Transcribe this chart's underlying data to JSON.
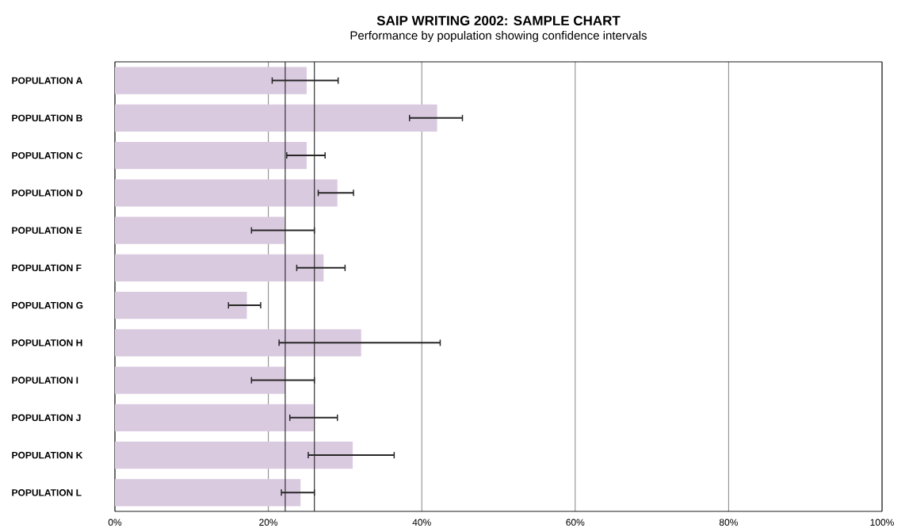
{
  "chart_data": {
    "type": "bar",
    "orientation": "horizontal",
    "title": "SAIP WRITING 2002: SAMPLE CHART",
    "subtitle": "Performance by population showing confidence intervals",
    "categories": [
      "POPULATION A",
      "POPULATION B",
      "POPULATION C",
      "POPULATION D",
      "POPULATION E",
      "POPULATION F",
      "POPULATION G",
      "POPULATION H",
      "POPULATION I",
      "POPULATION J",
      "POPULATION K",
      "POPULATION L"
    ],
    "values": [
      25.0,
      42.0,
      25.0,
      29.0,
      22.1,
      27.2,
      17.2,
      32.1,
      22.2,
      25.9,
      31.0,
      24.2
    ],
    "errors": [
      [
        20.5,
        29.1
      ],
      [
        38.4,
        45.3
      ],
      [
        22.4,
        27.4
      ],
      [
        26.5,
        31.1
      ],
      [
        17.8,
        26.0
      ],
      [
        23.7,
        30.0
      ],
      [
        14.8,
        19.0
      ],
      [
        21.4,
        42.4
      ],
      [
        17.8,
        26.0
      ],
      [
        22.8,
        29.0
      ],
      [
        25.2,
        36.4
      ],
      [
        21.7,
        26.0
      ]
    ],
    "color": "#dacae0",
    "xlim": [
      0,
      100
    ],
    "xticks": [
      {
        "value": 0,
        "label": "0%"
      },
      {
        "value": 20,
        "label": "20%"
      },
      {
        "value": 40,
        "label": "40%"
      },
      {
        "value": 60,
        "label": "60%"
      },
      {
        "value": 80,
        "label": "80%"
      },
      {
        "value": 100,
        "label": "100%"
      }
    ],
    "grid": "x",
    "ref_lines": [
      {
        "axis": "x",
        "value": 22.2,
        "color": "#333333"
      },
      {
        "axis": "x",
        "value": 26.0,
        "color": "#333333"
      }
    ]
  }
}
